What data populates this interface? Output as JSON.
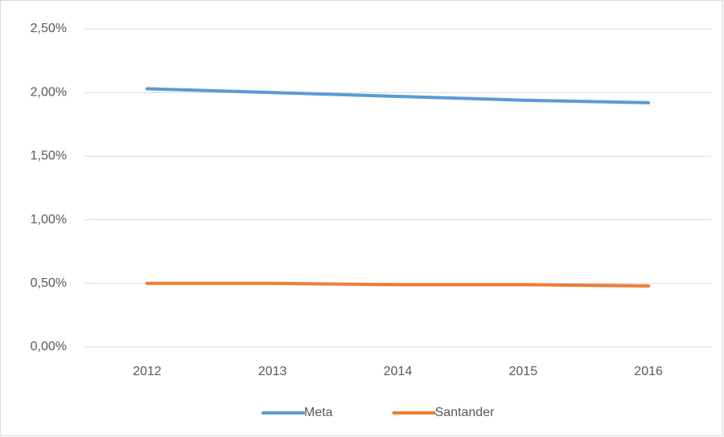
{
  "chart_data": {
    "type": "line",
    "categories": [
      "2012",
      "2013",
      "2014",
      "2015",
      "2016"
    ],
    "series": [
      {
        "name": "Meta",
        "color": "#5b9bd5",
        "values": [
          2.03,
          2.0,
          1.97,
          1.94,
          1.92
        ]
      },
      {
        "name": "Santander",
        "color": "#ed7d31",
        "values": [
          0.5,
          0.5,
          0.49,
          0.49,
          0.48
        ]
      }
    ],
    "ylim": [
      0,
      2.5
    ],
    "yticks": [
      {
        "value": 0,
        "label": "0,00%"
      },
      {
        "value": 0.5,
        "label": "0,50%"
      },
      {
        "value": 1,
        "label": "1,00%"
      },
      {
        "value": 1.5,
        "label": "1,50%"
      },
      {
        "value": 2,
        "label": "2,00%"
      },
      {
        "value": 2.5,
        "label": "2,50%"
      }
    ],
    "grid": true,
    "legend": "bottom"
  }
}
